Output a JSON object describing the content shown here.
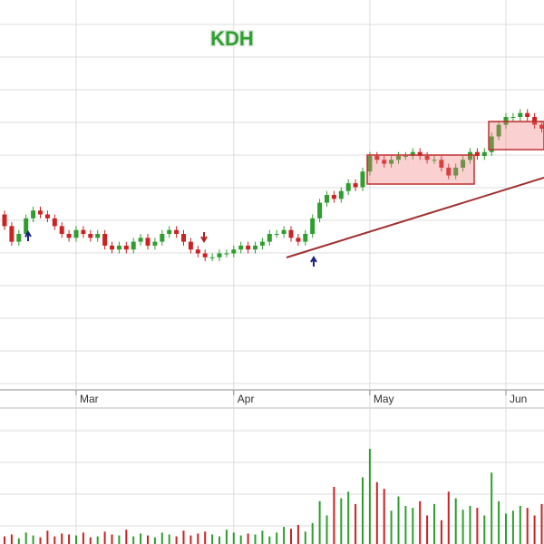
{
  "chart_data": {
    "type": "candlestick",
    "title": "KDH",
    "categories": [
      null,
      null,
      null,
      null,
      null,
      null,
      null,
      null,
      null,
      null,
      "Mar",
      null,
      null,
      null,
      null,
      null,
      null,
      null,
      null,
      null,
      null,
      null,
      null,
      null,
      null,
      null,
      null,
      null,
      null,
      null,
      null,
      null,
      "Apr",
      null,
      null,
      null,
      null,
      null,
      null,
      null,
      null,
      null,
      null,
      null,
      null,
      null,
      null,
      null,
      null,
      null,
      null,
      "May",
      null,
      null,
      null,
      null,
      null,
      null,
      null,
      null,
      null,
      null,
      null,
      null,
      null,
      null,
      null,
      null,
      null,
      null,
      "Jun",
      null,
      null,
      null,
      null,
      null
    ],
    "open": [
      45,
      42,
      38,
      40,
      44,
      46,
      45,
      44,
      42,
      40,
      39,
      41,
      40,
      39,
      40,
      37,
      36,
      37,
      36,
      38,
      39,
      37,
      38,
      40,
      41,
      40,
      38,
      36,
      35,
      34,
      34,
      35,
      35,
      36,
      37,
      36,
      37,
      38,
      40,
      40,
      41,
      39,
      38,
      40,
      44,
      48,
      50,
      49,
      51,
      53,
      52,
      56,
      60,
      59,
      58,
      59,
      60,
      60,
      61,
      60,
      59,
      59,
      57,
      55,
      57,
      59,
      61,
      60,
      61,
      65,
      68,
      70,
      70,
      71,
      70,
      68
    ],
    "high": [
      46,
      43,
      41,
      45,
      47,
      47,
      46,
      45,
      43,
      41,
      42,
      42,
      41,
      41,
      41,
      38,
      38,
      38,
      39,
      40,
      40,
      39,
      41,
      42,
      42,
      41,
      39,
      37,
      36,
      35,
      36,
      36,
      37,
      38,
      38,
      38,
      39,
      41,
      41,
      42,
      42,
      40,
      41,
      45,
      49,
      51,
      51,
      52,
      54,
      54,
      57,
      61,
      61,
      60,
      60,
      61,
      61,
      62,
      62,
      61,
      60,
      60,
      58,
      58,
      60,
      62,
      62,
      62,
      66,
      69,
      71,
      71,
      72,
      72,
      71,
      69
    ],
    "low": [
      41,
      37,
      37,
      39,
      43,
      44,
      43,
      41,
      39,
      38,
      38,
      39,
      38,
      38,
      36,
      35,
      35,
      35,
      35,
      37,
      36,
      36,
      37,
      39,
      39,
      37,
      35,
      34,
      33,
      33,
      33,
      34,
      34,
      35,
      35,
      35,
      36,
      37,
      39,
      39,
      38,
      37,
      37,
      39,
      43,
      47,
      48,
      48,
      50,
      51,
      51,
      55,
      58,
      57,
      57,
      58,
      59,
      59,
      59,
      58,
      58,
      56,
      54,
      54,
      56,
      58,
      59,
      59,
      60,
      64,
      67,
      69,
      69,
      69,
      67,
      66
    ],
    "close": [
      42,
      38,
      40,
      44,
      46,
      45,
      44,
      42,
      40,
      39,
      41,
      40,
      39,
      40,
      37,
      36,
      37,
      36,
      38,
      39,
      37,
      38,
      40,
      41,
      40,
      38,
      36,
      35,
      34,
      34,
      35,
      35,
      36,
      37,
      36,
      37,
      38,
      40,
      40,
      41,
      39,
      38,
      40,
      44,
      48,
      50,
      49,
      51,
      53,
      52,
      56,
      60,
      59,
      58,
      59,
      60,
      60,
      61,
      60,
      59,
      59,
      57,
      55,
      57,
      59,
      61,
      60,
      61,
      65,
      68,
      70,
      70,
      71,
      70,
      68,
      67
    ],
    "volume": [
      8,
      10,
      6,
      12,
      9,
      7,
      14,
      8,
      11,
      10,
      9,
      12,
      7,
      8,
      13,
      10,
      9,
      15,
      8,
      11,
      9,
      7,
      12,
      10,
      8,
      14,
      9,
      11,
      13,
      10,
      8,
      15,
      12,
      9,
      11,
      10,
      14,
      8,
      12,
      18,
      16,
      20,
      13,
      22,
      45,
      30,
      60,
      48,
      55,
      42,
      70,
      100,
      65,
      58,
      35,
      50,
      40,
      38,
      45,
      30,
      42,
      25,
      55,
      48,
      36,
      40,
      38,
      30,
      75,
      45,
      32,
      35,
      40,
      38,
      30,
      42
    ],
    "ylim": [
      0,
      100
    ],
    "volume_ylim": [
      0,
      100
    ],
    "up_color": "#2e9e2e",
    "down_color": "#cc2222",
    "title_color": "#2ea02e"
  }
}
